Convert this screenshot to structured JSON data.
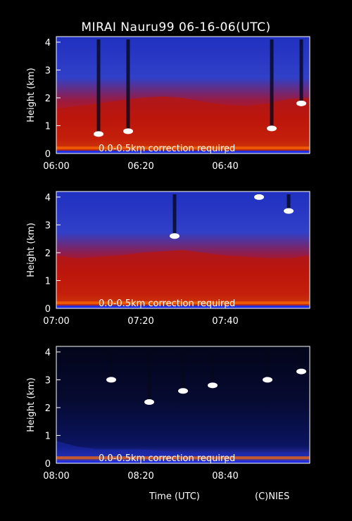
{
  "title": "MIRAI Nauru99 06-16-06(UTC)",
  "xtitle": "Time (UTC)",
  "credit": "(C)NIES",
  "ylabel": "Height (km)",
  "note": "0.0-0.5km correction required",
  "colors": {
    "background": "#000000",
    "scale_low": "#1a2acc",
    "scale_mid": "#d01a08",
    "scale_high": "#ffffff"
  },
  "chart_data": [
    {
      "type": "heatmap",
      "title": "",
      "xlabel": "",
      "ylabel": "Height (km)",
      "xlim": [
        "06:00",
        "07:00"
      ],
      "ylim": [
        0,
        4.2
      ],
      "x_ticks": [
        "06:00",
        "06:20",
        "06:40"
      ],
      "y_ticks": [
        "0",
        "1",
        "2",
        "3",
        "4"
      ],
      "annotation": "0.0-0.5km correction required",
      "layer_top_km": [
        1.6,
        1.7,
        1.8,
        1.9,
        2.0,
        2.05,
        2.0,
        1.85,
        1.75,
        1.7,
        1.8,
        1.95,
        2.0
      ],
      "clouds": [
        {
          "time": "06:10",
          "height_km": 0.7
        },
        {
          "time": "06:17",
          "height_km": 0.8
        },
        {
          "time": "06:51",
          "height_km": 0.9
        },
        {
          "time": "06:58",
          "height_km": 1.8
        }
      ]
    },
    {
      "type": "heatmap",
      "title": "",
      "xlabel": "",
      "ylabel": "Height (km)",
      "xlim": [
        "07:00",
        "08:00"
      ],
      "ylim": [
        0,
        4.2
      ],
      "x_ticks": [
        "07:00",
        "07:20",
        "07:40"
      ],
      "y_ticks": [
        "0",
        "1",
        "2",
        "3",
        "4"
      ],
      "annotation": "0.0-0.5km correction required",
      "layer_top_km": [
        1.9,
        1.8,
        1.85,
        1.9,
        2.0,
        2.05,
        2.1,
        2.0,
        1.9,
        1.85,
        1.8,
        1.8,
        1.9
      ],
      "clouds": [
        {
          "time": "07:28",
          "height_km": 2.6
        },
        {
          "time": "07:48",
          "height_km": 4.0
        },
        {
          "time": "07:55",
          "height_km": 3.5
        }
      ]
    },
    {
      "type": "heatmap",
      "title": "",
      "xlabel": "Time (UTC)",
      "ylabel": "Height (km)",
      "xlim": [
        "08:00",
        "09:00"
      ],
      "ylim": [
        0,
        4.2
      ],
      "x_ticks": [
        "08:00",
        "08:20",
        "08:40"
      ],
      "y_ticks": [
        "0",
        "1",
        "2",
        "3",
        "4"
      ],
      "annotation": "0.0-0.5km correction required",
      "layer_top_km": [
        0.8,
        0.6,
        0.5,
        0.5,
        0.5,
        0.45,
        0.4,
        0.4,
        0.4,
        0.4,
        0.4,
        0.4,
        0.4
      ],
      "clouds": [
        {
          "time": "08:13",
          "height_km": 3.0
        },
        {
          "time": "08:22",
          "height_km": 2.2
        },
        {
          "time": "08:30",
          "height_km": 2.6
        },
        {
          "time": "08:37",
          "height_km": 2.8
        },
        {
          "time": "08:50",
          "height_km": 3.0
        },
        {
          "time": "08:58",
          "height_km": 3.3
        }
      ]
    }
  ]
}
